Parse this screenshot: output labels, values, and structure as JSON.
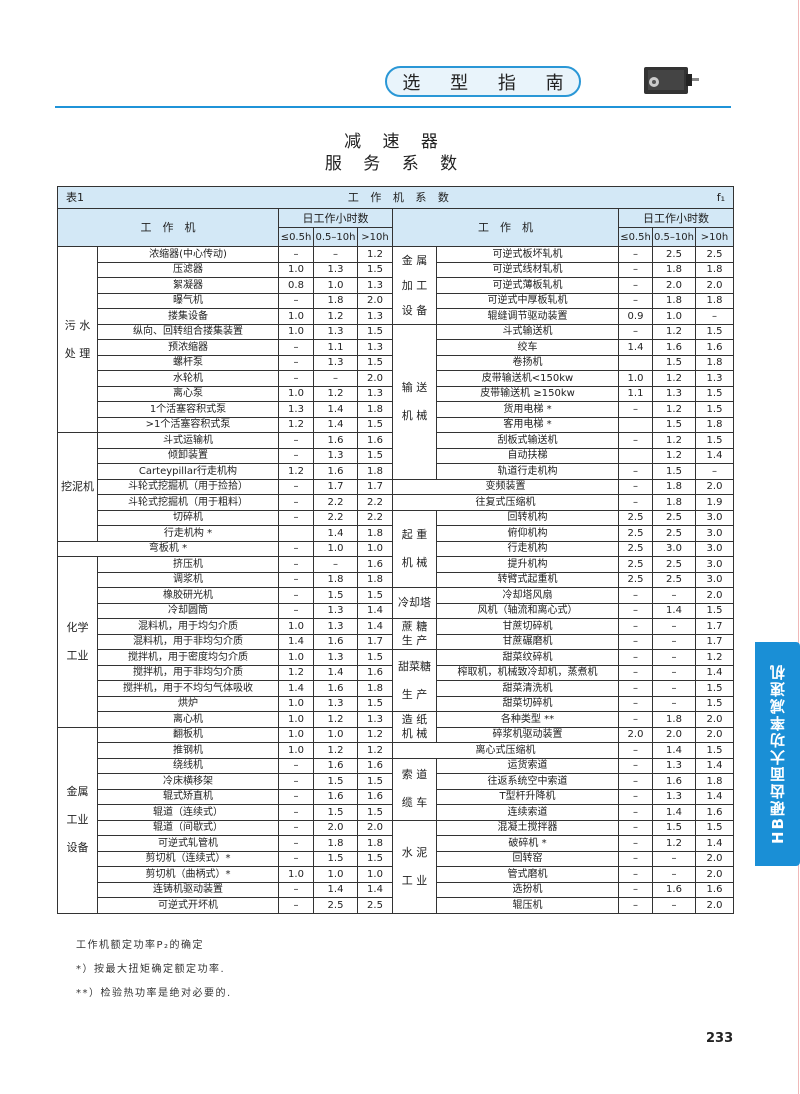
{
  "header": {
    "section": "选 型 指 南",
    "title_line1": "减 速 器",
    "title_line2": "服 务 系 数"
  },
  "side_tab": "HB硬齿面大功率减速机",
  "table": {
    "label": "表1",
    "caption": "工 作 机 系 数",
    "symbol": "f₁",
    "machine_header": "工　作　机",
    "hours_header": "日工作小时数",
    "hour_cols": [
      "≤0.5h",
      "0.5–10h",
      ">10h"
    ],
    "left": [
      {
        "group": "污 水\n处 理",
        "rows": [
          [
            "浓缩器(中心传动)",
            "–",
            "–",
            "1.2"
          ],
          [
            "压滤器",
            "1.0",
            "1.3",
            "1.5"
          ],
          [
            "絮凝器",
            "0.8",
            "1.0",
            "1.3"
          ],
          [
            "曝气机",
            "–",
            "1.8",
            "2.0"
          ],
          [
            "搂集设备",
            "1.0",
            "1.2",
            "1.3"
          ],
          [
            "纵向、回转组合搂集装置",
            "1.0",
            "1.3",
            "1.5"
          ],
          [
            "预浓缩器",
            "–",
            "1.1",
            "1.3"
          ],
          [
            "螺杆泵",
            "–",
            "1.3",
            "1.5"
          ],
          [
            "水轮机",
            "–",
            "–",
            "2.0"
          ],
          [
            "离心泵",
            "1.0",
            "1.2",
            "1.3"
          ],
          [
            "1个活塞容积式泵",
            "1.3",
            "1.4",
            "1.8"
          ],
          [
            ">1个活塞容积式泵",
            "1.2",
            "1.4",
            "1.5"
          ]
        ]
      },
      {
        "group": "挖泥机",
        "rows": [
          [
            "斗式运输机",
            "–",
            "1.6",
            "1.6"
          ],
          [
            "倾卸装置",
            "–",
            "1.3",
            "1.5"
          ],
          [
            "Carteypillar行走机构",
            "1.2",
            "1.6",
            "1.8"
          ],
          [
            "斗轮式挖掘机（用于捡拾）",
            "–",
            "1.7",
            "1.7"
          ],
          [
            "斗轮式挖掘机（用于粗料）",
            "–",
            "2.2",
            "2.2"
          ],
          [
            "切碎机",
            "–",
            "2.2",
            "2.2"
          ],
          [
            "行走机构 *",
            "",
            "1.4",
            "1.8"
          ]
        ]
      },
      {
        "group": null,
        "rows": [
          [
            "弯板机 *",
            "–",
            "1.0",
            "1.0"
          ]
        ]
      },
      {
        "group": "化学\n工业",
        "rows": [
          [
            "挤压机",
            "–",
            "–",
            "1.6"
          ],
          [
            "调浆机",
            "–",
            "1.8",
            "1.8"
          ],
          [
            "橡胶研光机",
            "–",
            "1.5",
            "1.5"
          ],
          [
            "冷却圆筒",
            "–",
            "1.3",
            "1.4"
          ],
          [
            "混料机，用于均匀介质",
            "1.0",
            "1.3",
            "1.4"
          ],
          [
            "混料机，用于非均匀介质",
            "1.4",
            "1.6",
            "1.7"
          ],
          [
            "搅拌机，用于密度均匀介质",
            "1.0",
            "1.3",
            "1.5"
          ],
          [
            "搅拌机，用于非均匀介质",
            "1.2",
            "1.4",
            "1.6"
          ],
          [
            "搅拌机，用于不均匀气体吸收",
            "1.4",
            "1.6",
            "1.8"
          ],
          [
            "烘炉",
            "1.0",
            "1.3",
            "1.5"
          ],
          [
            "离心机",
            "1.0",
            "1.2",
            "1.3"
          ]
        ]
      },
      {
        "group": "金属\n工业\n设备",
        "rows": [
          [
            "翻板机",
            "1.0",
            "1.0",
            "1.2"
          ],
          [
            "推钢机",
            "1.0",
            "1.2",
            "1.2"
          ],
          [
            "绕线机",
            "–",
            "1.6",
            "1.6"
          ],
          [
            "冷床横移架",
            "–",
            "1.5",
            "1.5"
          ],
          [
            "辊式矫直机",
            "–",
            "1.6",
            "1.6"
          ],
          [
            "辊道（连续式）",
            "–",
            "1.5",
            "1.5"
          ],
          [
            "辊道（间歇式）",
            "–",
            "2.0",
            "2.0"
          ],
          [
            "可逆式轧管机",
            "–",
            "1.8",
            "1.8"
          ],
          [
            "剪切机（连续式）*",
            "–",
            "1.5",
            "1.5"
          ],
          [
            "剪切机（曲柄式）*",
            "1.0",
            "1.0",
            "1.0"
          ],
          [
            "连铸机驱动装置",
            "–",
            "1.4",
            "1.4"
          ],
          [
            "可逆式开坏机",
            "–",
            "2.5",
            "2.5"
          ]
        ]
      }
    ],
    "right": [
      {
        "group": "金 属\n加 工\n设 备",
        "rows": [
          [
            "可逆式板坏轧机",
            "–",
            "2.5",
            "2.5"
          ],
          [
            "可逆式线材轧机",
            "–",
            "1.8",
            "1.8"
          ],
          [
            "可逆式薄板轧机",
            "–",
            "2.0",
            "2.0"
          ],
          [
            "可逆式中厚板轧机",
            "–",
            "1.8",
            "1.8"
          ],
          [
            "辊缝调节驱动装置",
            "0.9",
            "1.0",
            "–"
          ]
        ]
      },
      {
        "group": "输 送\n机 械",
        "rows": [
          [
            "斗式输送机",
            "–",
            "1.2",
            "1.5"
          ],
          [
            "绞车",
            "1.4",
            "1.6",
            "1.6"
          ],
          [
            "卷扬机",
            "",
            "1.5",
            "1.8"
          ],
          [
            "皮带输送机<150kw",
            "1.0",
            "1.2",
            "1.3"
          ],
          [
            "皮带输送机 ≥150kw",
            "1.1",
            "1.3",
            "1.5"
          ],
          [
            "货用电梯 *",
            "–",
            "1.2",
            "1.5"
          ],
          [
            "客用电梯 *",
            "",
            "1.5",
            "1.8"
          ],
          [
            "刮板式输送机",
            "–",
            "1.2",
            "1.5"
          ],
          [
            "自动扶梯",
            "",
            "1.2",
            "1.4"
          ],
          [
            "轨道行走机构",
            "–",
            "1.5",
            "–"
          ]
        ]
      },
      {
        "group": null,
        "rows": [
          [
            "变频装置",
            "–",
            "1.8",
            "2.0"
          ]
        ]
      },
      {
        "group": null,
        "rows": [
          [
            "往复式压缩机",
            "–",
            "1.8",
            "1.9"
          ]
        ]
      },
      {
        "group": "起 重\n机 械",
        "rows": [
          [
            "回转机构",
            "2.5",
            "2.5",
            "3.0"
          ],
          [
            "俯仰机构",
            "2.5",
            "2.5",
            "3.0"
          ],
          [
            "行走机构",
            "2.5",
            "3.0",
            "3.0"
          ],
          [
            "提升机构",
            "2.5",
            "2.5",
            "3.0"
          ],
          [
            "转臂式起重机",
            "2.5",
            "2.5",
            "3.0"
          ]
        ]
      },
      {
        "group": "冷却塔",
        "rows": [
          [
            "冷却塔风扇",
            "–",
            "–",
            "2.0"
          ],
          [
            "风机（轴流和离心式）",
            "–",
            "1.4",
            "1.5"
          ]
        ]
      },
      {
        "group": "蔗 糖\n生 产",
        "rows": [
          [
            "甘蔗切碎机",
            "–",
            "–",
            "1.7"
          ],
          [
            "甘蔗碾磨机",
            "–",
            "–",
            "1.7"
          ]
        ]
      },
      {
        "group": "甜菜糖\n生 产",
        "rows": [
          [
            "甜菜纹碎机",
            "–",
            "–",
            "1.2"
          ],
          [
            "榨取机，机械致冷却机，蒸煮机",
            "–",
            "–",
            "1.4"
          ],
          [
            "甜菜清洗机",
            "–",
            "–",
            "1.5"
          ],
          [
            "甜菜切碎机",
            "–",
            "–",
            "1.5"
          ]
        ]
      },
      {
        "group": "造 纸\n机 械",
        "rows": [
          [
            "各种类型 **",
            "–",
            "1.8",
            "2.0"
          ],
          [
            "碎浆机驱动装置",
            "2.0",
            "2.0",
            "2.0"
          ]
        ]
      },
      {
        "group": null,
        "rows": [
          [
            "离心式压缩机",
            "–",
            "1.4",
            "1.5"
          ]
        ]
      },
      {
        "group": "索 道\n缆 车",
        "rows": [
          [
            "运货索道",
            "–",
            "1.3",
            "1.4"
          ],
          [
            "往返系统空中索道",
            "–",
            "1.6",
            "1.8"
          ],
          [
            "T型杆升降机",
            "–",
            "1.3",
            "1.4"
          ],
          [
            "连续索道",
            "–",
            "1.4",
            "1.6"
          ]
        ]
      },
      {
        "group": "水 泥\n工 业",
        "rows": [
          [
            "混凝土搅拌器",
            "–",
            "1.5",
            "1.5"
          ],
          [
            "破碎机 *",
            "–",
            "1.2",
            "1.4"
          ],
          [
            "回转窑",
            "–",
            "–",
            "2.0"
          ],
          [
            "管式磨机",
            "–",
            "–",
            "2.0"
          ],
          [
            "选扮机",
            "–",
            "1.6",
            "1.6"
          ],
          [
            "辊压机",
            "–",
            "–",
            "2.0"
          ]
        ]
      }
    ]
  },
  "notes": [
    "工作机额定功率P₂的确定",
    "*）按最大扭矩确定额定功率.",
    "**）检验热功率是绝对必要的."
  ],
  "page_number": "233",
  "colors": {
    "accent": "#1a8fd6",
    "header_bg": "#d3e8f6"
  }
}
